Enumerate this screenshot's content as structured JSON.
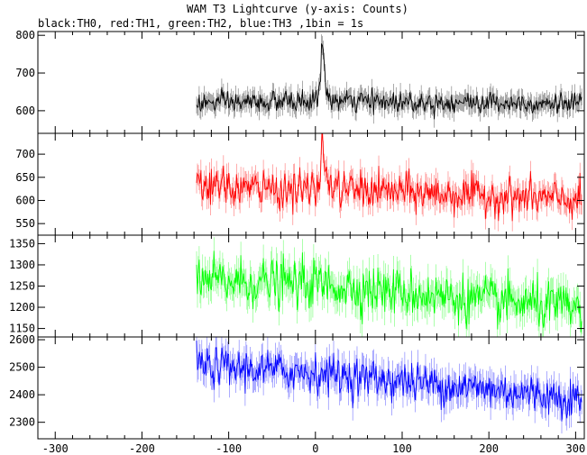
{
  "chart_data": {
    "type": "line",
    "title": "WAM T3 Lightcurve (y-axis: Counts)",
    "subtitle": "black:TH0, red:TH1, green:TH2, blue:TH3 ,1bin = 1s",
    "xlim": [
      -320,
      310
    ],
    "x_ticks": [
      -300,
      -200,
      -100,
      0,
      100,
      200,
      300
    ],
    "data_x_range": [
      -137,
      307
    ],
    "bin_seconds": 1,
    "grid": false,
    "panels": [
      {
        "name": "TH0",
        "color": "#000000",
        "ylim": [
          540,
          810
        ],
        "y_ticks": [
          600,
          700,
          800
        ],
        "baseline": 620,
        "noise_sd": 14,
        "trend_end": 620,
        "peak": {
          "x": 8,
          "height": 175,
          "width": 3
        },
        "profile": [
          [
            -137,
            620
          ],
          [
            0,
            625
          ],
          [
            5,
            660
          ],
          [
            8,
            795
          ],
          [
            12,
            650
          ],
          [
            20,
            625
          ],
          [
            307,
            620
          ]
        ]
      },
      {
        "name": "TH1",
        "color": "#ff0000",
        "ylim": [
          525,
          745
        ],
        "y_ticks": [
          550,
          600,
          650,
          700
        ],
        "baseline": 630,
        "noise_sd": 20,
        "trend_end": 600,
        "profile": [
          [
            -137,
            630
          ],
          [
            0,
            622
          ],
          [
            5,
            650
          ],
          [
            8,
            725
          ],
          [
            12,
            655
          ],
          [
            20,
            625
          ],
          [
            307,
            600
          ]
        ]
      },
      {
        "name": "TH2",
        "color": "#00ff00",
        "ylim": [
          1130,
          1370
        ],
        "y_ticks": [
          1150,
          1200,
          1250,
          1300,
          1350
        ],
        "baseline": 1260,
        "noise_sd": 28,
        "trend_end": 1200,
        "profile": [
          [
            -137,
            1262
          ],
          [
            0,
            1255
          ],
          [
            50,
            1245
          ],
          [
            150,
            1225
          ],
          [
            307,
            1195
          ]
        ]
      },
      {
        "name": "TH3",
        "color": "#0000ff",
        "ylim": [
          2240,
          2610
        ],
        "y_ticks": [
          2300,
          2400,
          2500,
          2600
        ],
        "baseline": 2500,
        "noise_sd": 35,
        "trend_end": 2380,
        "profile": [
          [
            -137,
            2505
          ],
          [
            0,
            2480
          ],
          [
            100,
            2450
          ],
          [
            200,
            2420
          ],
          [
            307,
            2385
          ]
        ]
      }
    ]
  }
}
